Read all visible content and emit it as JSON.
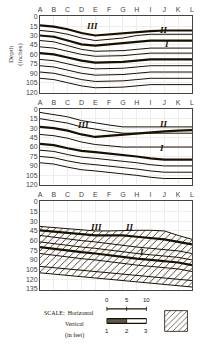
{
  "chart_data": [
    {
      "type": "line",
      "categories": [
        "A",
        "B",
        "C",
        "D",
        "E",
        "F",
        "G",
        "H",
        "I",
        "J",
        "K",
        "L"
      ],
      "ylabel": "Depth\n(inches)",
      "ylim": [
        121,
        -1
      ],
      "yticks": [
        0,
        15,
        30,
        45,
        60,
        75,
        90,
        105,
        120
      ],
      "grid": true,
      "color": "#1a1000",
      "series": [
        {
          "values": [
            14,
            16,
            20,
            26,
            30,
            28,
            26,
            24,
            23,
            22,
            22,
            22
          ],
          "line_style": "bold"
        },
        {
          "values": [
            22,
            24,
            28,
            34,
            38,
            36,
            34,
            30,
            28,
            28,
            28,
            28
          ],
          "line_style": "solid"
        },
        {
          "values": [
            30,
            32,
            38,
            44,
            46,
            44,
            42,
            40,
            38,
            38,
            38,
            38
          ],
          "line_style": "bold"
        },
        {
          "values": [
            38,
            40,
            46,
            52,
            55,
            55,
            54,
            52,
            50,
            50,
            50,
            50
          ],
          "line_style": "solid"
        },
        {
          "values": [
            48,
            50,
            55,
            60,
            63,
            63,
            62,
            60,
            58,
            58,
            58,
            58
          ],
          "line_style": "solid"
        },
        {
          "values": [
            58,
            60,
            65,
            70,
            73,
            73,
            72,
            70,
            68,
            68,
            68,
            68
          ],
          "line_style": "bold"
        },
        {
          "values": [
            68,
            70,
            75,
            80,
            83,
            83,
            82,
            80,
            78,
            78,
            78,
            78
          ],
          "line_style": "solid"
        },
        {
          "values": [
            78,
            80,
            85,
            90,
            93,
            93,
            92,
            90,
            88,
            88,
            88,
            88
          ],
          "line_style": "solid"
        },
        {
          "values": [
            88,
            90,
            95,
            100,
            103,
            103,
            102,
            100,
            98,
            98,
            98,
            98
          ],
          "line_style": "solid"
        },
        {
          "values": [
            98,
            100,
            105,
            110,
            113,
            113,
            112,
            110,
            108,
            108,
            108,
            108
          ],
          "line_style": "solid"
        }
      ],
      "annotations": [
        {
          "text": "III",
          "x": 3.2,
          "y": 26
        },
        {
          "text": "II",
          "x": 8.5,
          "y": 32
        },
        {
          "text": "I",
          "x": 8.8,
          "y": 55
        }
      ]
    },
    {
      "type": "line",
      "categories": [
        "A",
        "B",
        "C",
        "D",
        "E",
        "F",
        "G",
        "H",
        "I",
        "J",
        "K",
        "L"
      ],
      "ylim": [
        121,
        -1
      ],
      "yticks": [
        0,
        15,
        30,
        45,
        60,
        75,
        90,
        105,
        120
      ],
      "grid": true,
      "color": "#1a1000",
      "series": [
        {
          "values": [
            5,
            8,
            12,
            18,
            22,
            25,
            28,
            28,
            28,
            28,
            28,
            28
          ],
          "line_style": "solid"
        },
        {
          "values": [
            15,
            18,
            22,
            28,
            32,
            35,
            38,
            38,
            38,
            38,
            38,
            38
          ],
          "line_style": "solid"
        },
        {
          "values": [
            28,
            30,
            34,
            40,
            44,
            42,
            40,
            38,
            36,
            35,
            34,
            33
          ],
          "line_style": "bold"
        },
        {
          "values": [
            40,
            42,
            46,
            52,
            56,
            58,
            60,
            60,
            60,
            60,
            60,
            60
          ],
          "line_style": "solid"
        },
        {
          "values": [
            55,
            57,
            62,
            66,
            68,
            70,
            72,
            75,
            78,
            80,
            80,
            80
          ],
          "line_style": "bold"
        },
        {
          "values": [
            65,
            67,
            72,
            76,
            78,
            80,
            82,
            85,
            88,
            90,
            90,
            90
          ],
          "line_style": "solid"
        },
        {
          "values": [
            75,
            77,
            82,
            86,
            88,
            90,
            92,
            95,
            98,
            100,
            100,
            100
          ],
          "line_style": "solid"
        },
        {
          "values": [
            85,
            87,
            92,
            96,
            98,
            100,
            102,
            105,
            108,
            110,
            110,
            110
          ],
          "line_style": "solid"
        }
      ],
      "annotations": [
        {
          "text": "III",
          "x": 2.5,
          "y": 36
        },
        {
          "text": "II",
          "x": 8.5,
          "y": 35
        },
        {
          "text": "I",
          "x": 8.5,
          "y": 72
        }
      ]
    },
    {
      "type": "line",
      "categories": [
        "A",
        "B",
        "C",
        "D",
        "E",
        "F",
        "G",
        "H",
        "I",
        "J",
        "K",
        "L"
      ],
      "ylim": [
        136,
        -1
      ],
      "yticks": [
        0,
        15,
        30,
        45,
        60,
        75,
        90,
        105,
        120,
        135
      ],
      "grid": true,
      "color": "#1a1000",
      "series": [
        {
          "type": "band",
          "values": [
            38,
            40,
            42,
            44,
            45,
            45,
            44,
            44,
            44,
            45,
            52,
            58
          ],
          "lower": [
            110,
            112,
            114,
            116,
            118,
            120,
            122,
            124,
            126,
            128,
            130,
            132
          ]
        },
        {
          "values": [
            38,
            40,
            42,
            44,
            45,
            45,
            44,
            44,
            44,
            45,
            52,
            58
          ],
          "line_style": "solid"
        },
        {
          "values": [
            44,
            46,
            48,
            50,
            52,
            52,
            52,
            54,
            56,
            58,
            62,
            66
          ],
          "line_style": "bold"
        },
        {
          "values": [
            52,
            55,
            58,
            60,
            62,
            65,
            68,
            70,
            72,
            74,
            76,
            80
          ],
          "line_style": "solid"
        },
        {
          "values": [
            62,
            65,
            68,
            70,
            72,
            75,
            78,
            80,
            82,
            84,
            86,
            90
          ],
          "line_style": "solid"
        },
        {
          "values": [
            70,
            73,
            76,
            78,
            80,
            83,
            86,
            88,
            90,
            92,
            94,
            98
          ],
          "line_style": "bold"
        },
        {
          "values": [
            80,
            83,
            86,
            88,
            90,
            93,
            96,
            98,
            100,
            102,
            104,
            108
          ],
          "line_style": "solid"
        },
        {
          "values": [
            100,
            102,
            104,
            106,
            108,
            110,
            112,
            114,
            116,
            118,
            120,
            122
          ],
          "line_style": "solid"
        },
        {
          "values": [
            110,
            112,
            114,
            116,
            118,
            120,
            122,
            124,
            126,
            128,
            130,
            132
          ],
          "line_style": "solid"
        }
      ],
      "annotations": [
        {
          "text": "III",
          "x": 3.5,
          "y": 50
        },
        {
          "text": "II",
          "x": 6.0,
          "y": 50
        },
        {
          "text": "I",
          "x": 7.0,
          "y": 88
        }
      ]
    },
    {
      "type": "scale",
      "labels": [
        "SCALE:  Horizontal",
        "Vertical",
        "(in feet)"
      ],
      "horizontal": [
        0,
        5,
        10
      ],
      "vertical": [
        1,
        2,
        3
      ],
      "color": "#1a1000"
    }
  ]
}
